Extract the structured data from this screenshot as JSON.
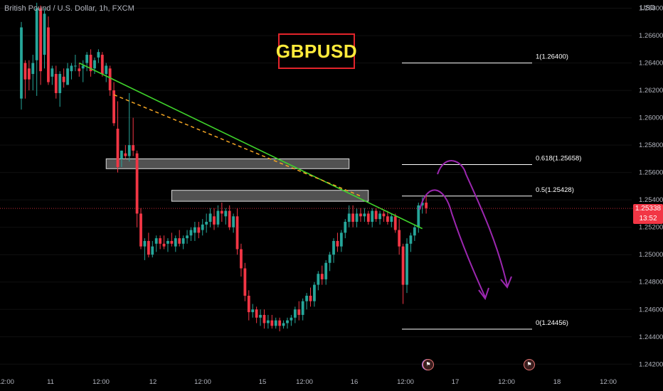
{
  "header": {
    "symbol": "British Pound / U.S. Dollar, 1h, FXCM",
    "currency": "USD"
  },
  "title_box": {
    "text": "GBPUSD",
    "text_color": "#ffeb3b",
    "border_color": "#e3242b"
  },
  "price_tag": {
    "price": "1.25338",
    "countdown": "13:52",
    "color": "#f23645"
  },
  "colors": {
    "up": "#26a69a",
    "down": "#f23645",
    "trendline": "#3fd42b",
    "dashed": "#f5a623",
    "projection": "#9c27b0",
    "fib": "#ffffff",
    "zone_fill": "rgba(150,150,150,0.55)"
  },
  "chart_data": {
    "type": "candlestick",
    "title": "GBPUSD",
    "y_axis": {
      "ticks": [
        "1.26800",
        "1.26600",
        "1.26400",
        "1.26200",
        "1.26000",
        "1.25800",
        "1.25600",
        "1.25400",
        "1.25200",
        "1.25000",
        "1.24800",
        "1.24600",
        "1.24400",
        "1.24200"
      ],
      "range": [
        1.2416,
        1.2686
      ]
    },
    "x_axis": {
      "ticks": [
        "12:00",
        "11",
        "12:00",
        "12",
        "12:00",
        "15",
        "12:00",
        "16",
        "12:00",
        "17",
        "12:00",
        "18",
        "12:00"
      ],
      "range": [
        0,
        133
      ]
    },
    "candles": [
      [
        1.2614,
        1.267,
        1.2606,
        1.2666
      ],
      [
        1.264,
        1.2642,
        1.2614,
        1.2628
      ],
      [
        1.2636,
        1.2642,
        1.262,
        1.2628
      ],
      [
        1.2632,
        1.2646,
        1.262,
        1.264
      ],
      [
        1.2642,
        1.2684,
        1.2616,
        1.268
      ],
      [
        1.268,
        1.2682,
        1.2624,
        1.2634
      ],
      [
        1.2646,
        1.268,
        1.2636,
        1.2676
      ],
      [
        1.2666,
        1.2674,
        1.2624,
        1.2626
      ],
      [
        1.263,
        1.2638,
        1.2624,
        1.2636
      ],
      [
        1.2632,
        1.2638,
        1.2614,
        1.2618
      ],
      [
        1.2618,
        1.2634,
        1.2608,
        1.2632
      ],
      [
        1.263,
        1.2636,
        1.2622,
        1.2626
      ],
      [
        1.2624,
        1.264,
        1.2624,
        1.2636
      ],
      [
        1.2634,
        1.264,
        1.2628,
        1.2638
      ],
      [
        1.2638,
        1.2646,
        1.2634,
        1.2638
      ],
      [
        1.2636,
        1.264,
        1.263,
        1.2634
      ],
      [
        1.2636,
        1.2642,
        1.2626,
        1.2638
      ],
      [
        1.264,
        1.2648,
        1.2634,
        1.2646
      ],
      [
        1.2646,
        1.265,
        1.263,
        1.2634
      ],
      [
        1.2636,
        1.2644,
        1.2632,
        1.2642
      ],
      [
        1.2644,
        1.265,
        1.264,
        1.2648
      ],
      [
        1.2646,
        1.2648,
        1.263,
        1.2632
      ],
      [
        1.2632,
        1.264,
        1.2626,
        1.2638
      ],
      [
        1.2636,
        1.2638,
        1.2616,
        1.262
      ],
      [
        1.262,
        1.2626,
        1.2594,
        1.2596
      ],
      [
        1.2592,
        1.2612,
        1.256,
        1.2564
      ],
      [
        1.257,
        1.2576,
        1.2564,
        1.2576
      ],
      [
        1.2574,
        1.258,
        1.257,
        1.2572
      ],
      [
        1.2572,
        1.2618,
        1.2568,
        1.258
      ],
      [
        1.258,
        1.26,
        1.2572,
        1.2576
      ],
      [
        1.2574,
        1.2576,
        1.252,
        1.253
      ],
      [
        1.253,
        1.2534,
        1.2504,
        1.2506
      ],
      [
        1.2506,
        1.2512,
        1.2496,
        1.251
      ],
      [
        1.251,
        1.2516,
        1.2498,
        1.25
      ],
      [
        1.25,
        1.251,
        1.2498,
        1.2506
      ],
      [
        1.2508,
        1.2514,
        1.2502,
        1.2512
      ],
      [
        1.2512,
        1.2514,
        1.2504,
        1.2508
      ],
      [
        1.2508,
        1.2514,
        1.2504,
        1.2506
      ],
      [
        1.2508,
        1.2512,
        1.2502,
        1.251
      ],
      [
        1.251,
        1.2516,
        1.2506,
        1.2508
      ],
      [
        1.2506,
        1.2514,
        1.2502,
        1.2512
      ],
      [
        1.2512,
        1.2518,
        1.2506,
        1.2508
      ],
      [
        1.2508,
        1.2514,
        1.2504,
        1.2512
      ],
      [
        1.2512,
        1.2518,
        1.2508,
        1.2514
      ],
      [
        1.2514,
        1.252,
        1.251,
        1.2518
      ],
      [
        1.2516,
        1.2524,
        1.251,
        1.252
      ],
      [
        1.252,
        1.2524,
        1.2512,
        1.2516
      ],
      [
        1.2518,
        1.2526,
        1.2514,
        1.2522
      ],
      [
        1.2522,
        1.253,
        1.2516,
        1.2524
      ],
      [
        1.2524,
        1.2534,
        1.252,
        1.253
      ],
      [
        1.2528,
        1.2534,
        1.2518,
        1.2522
      ],
      [
        1.2522,
        1.2536,
        1.252,
        1.2532
      ],
      [
        1.2532,
        1.2538,
        1.2524,
        1.253
      ],
      [
        1.2528,
        1.2534,
        1.2522,
        1.2532
      ],
      [
        1.2532,
        1.2536,
        1.2518,
        1.252
      ],
      [
        1.252,
        1.253,
        1.2516,
        1.2528
      ],
      [
        1.2528,
        1.2534,
        1.25,
        1.2504
      ],
      [
        1.2504,
        1.2508,
        1.2484,
        1.249
      ],
      [
        1.249,
        1.2494,
        1.2466,
        1.247
      ],
      [
        1.247,
        1.2474,
        1.2452,
        1.2458
      ],
      [
        1.2458,
        1.2464,
        1.2454,
        1.246
      ],
      [
        1.246,
        1.2462,
        1.245,
        1.2454
      ],
      [
        1.2454,
        1.246,
        1.2448,
        1.2456
      ],
      [
        1.2456,
        1.246,
        1.2446,
        1.245
      ],
      [
        1.245,
        1.2456,
        1.2446,
        1.2452
      ],
      [
        1.2452,
        1.2456,
        1.2446,
        1.2448
      ],
      [
        1.2448,
        1.2454,
        1.2446,
        1.2452
      ],
      [
        1.2452,
        1.2454,
        1.2444,
        1.2448
      ],
      [
        1.2448,
        1.2452,
        1.2446,
        1.245
      ],
      [
        1.245,
        1.2454,
        1.2446,
        1.2452
      ],
      [
        1.2452,
        1.2456,
        1.2448,
        1.2454
      ],
      [
        1.2454,
        1.2462,
        1.245,
        1.246
      ],
      [
        1.246,
        1.2466,
        1.2452,
        1.2456
      ],
      [
        1.2456,
        1.2468,
        1.2452,
        1.2466
      ],
      [
        1.2466,
        1.2472,
        1.246,
        1.247
      ],
      [
        1.247,
        1.2476,
        1.2462,
        1.2466
      ],
      [
        1.2466,
        1.248,
        1.2462,
        1.2478
      ],
      [
        1.2478,
        1.2488,
        1.2474,
        1.2486
      ],
      [
        1.2486,
        1.2492,
        1.2478,
        1.2482
      ],
      [
        1.2482,
        1.2496,
        1.2478,
        1.2494
      ],
      [
        1.2494,
        1.2502,
        1.2488,
        1.25
      ],
      [
        1.25,
        1.2512,
        1.2494,
        1.251
      ],
      [
        1.251,
        1.2516,
        1.2502,
        1.2506
      ],
      [
        1.2506,
        1.2518,
        1.2502,
        1.2516
      ],
      [
        1.2516,
        1.2526,
        1.2512,
        1.2524
      ],
      [
        1.2524,
        1.2536,
        1.252,
        1.253
      ],
      [
        1.253,
        1.2536,
        1.252,
        1.2524
      ],
      [
        1.2524,
        1.2534,
        1.252,
        1.253
      ],
      [
        1.253,
        1.2534,
        1.2524,
        1.2528
      ],
      [
        1.2528,
        1.2534,
        1.2524,
        1.253
      ],
      [
        1.253,
        1.2532,
        1.2522,
        1.2524
      ],
      [
        1.2524,
        1.2534,
        1.252,
        1.2532
      ],
      [
        1.2532,
        1.2534,
        1.2524,
        1.2526
      ],
      [
        1.2526,
        1.2532,
        1.2522,
        1.253
      ],
      [
        1.253,
        1.2532,
        1.2524,
        1.2528
      ],
      [
        1.2528,
        1.2532,
        1.2522,
        1.2524
      ],
      [
        1.2524,
        1.253,
        1.252,
        1.2528
      ],
      [
        1.2528,
        1.253,
        1.2516,
        1.2518
      ],
      [
        1.2518,
        1.2526,
        1.25,
        1.2506
      ],
      [
        1.2506,
        1.2508,
        1.2464,
        1.2478
      ],
      [
        1.2478,
        1.2512,
        1.2472,
        1.2508
      ],
      [
        1.2508,
        1.2516,
        1.2502,
        1.2514
      ],
      [
        1.2514,
        1.2522,
        1.251,
        1.252
      ],
      [
        1.252,
        1.2538,
        1.2516,
        1.2536
      ],
      [
        1.2536,
        1.2542,
        1.253,
        1.2538
      ],
      [
        1.2538,
        1.2544,
        1.253,
        1.2534
      ]
    ],
    "zones": [
      {
        "from_bar": 22,
        "to_bar": 85,
        "top": 1.257,
        "bottom": 1.25628
      },
      {
        "from_bar": 39,
        "to_bar": 90,
        "top": 1.2547,
        "bottom": 1.2539
      }
    ],
    "trendline": {
      "x1": 15,
      "y1": 1.264,
      "x2": 104,
      "y2": 1.2519
    },
    "dashed_line": {
      "x1": 24,
      "y1": 1.26168,
      "x2": 88,
      "y2": 1.25428
    },
    "fib_levels": [
      {
        "label": "1(1.26400)",
        "value": 1.264
      },
      {
        "label": "0.618(1.25658)",
        "value": 1.25658
      },
      {
        "label": "0.5(1.25428)",
        "value": 1.25428
      },
      {
        "label": "0(1.24456)",
        "value": 1.24456
      }
    ],
    "fib_range": {
      "from_bar": 81,
      "to_bar": 107
    }
  }
}
